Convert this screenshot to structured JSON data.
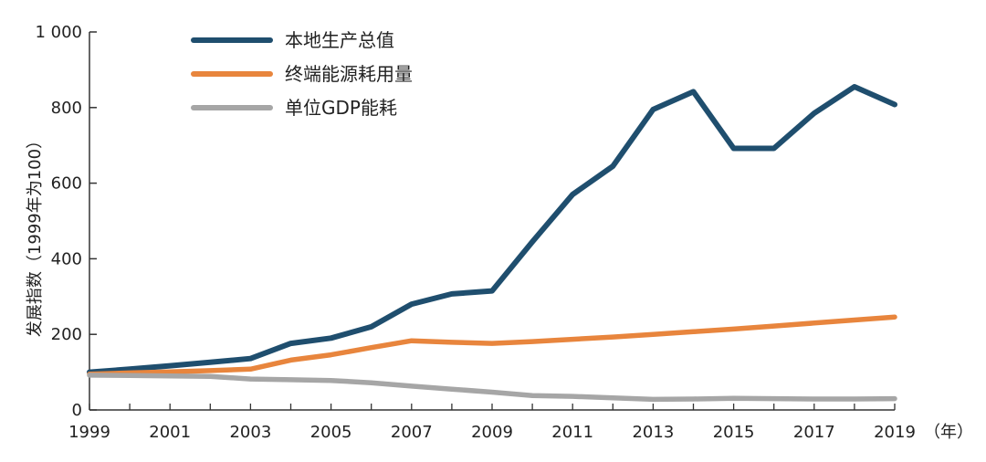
{
  "chart_data": {
    "type": "line",
    "title": "",
    "xlabel": "（年）",
    "ylabel": "发展指数（1999年为100）",
    "x": [
      1999,
      2000,
      2001,
      2002,
      2003,
      2004,
      2005,
      2006,
      2007,
      2008,
      2009,
      2010,
      2011,
      2012,
      2013,
      2014,
      2015,
      2016,
      2017,
      2018,
      2019
    ],
    "x_tick_labels": [
      "1999",
      "2001",
      "2003",
      "2005",
      "2007",
      "2009",
      "2011",
      "2013",
      "2015",
      "2017",
      "2019"
    ],
    "y_tick_labels": [
      "0",
      "200",
      "400",
      "600",
      "800",
      "1 000"
    ],
    "ylim": [
      0,
      1000
    ],
    "xlim": [
      1999,
      2019
    ],
    "grid": false,
    "legend_position": "top-left",
    "series": [
      {
        "name": "本地生产总值",
        "color": "#1f4e6e",
        "values": [
          100,
          108,
          117,
          126,
          136,
          176,
          190,
          220,
          280,
          307,
          315,
          445,
          570,
          645,
          795,
          842,
          692,
          692,
          785,
          855,
          808
        ]
      },
      {
        "name": "终端能源耗用量",
        "color": "#e8853d",
        "values": [
          95,
          98,
          101,
          104,
          108,
          132,
          146,
          165,
          183,
          179,
          176,
          181,
          187,
          193,
          200,
          207,
          214,
          222,
          230,
          238,
          246
        ]
      },
      {
        "name": "单位GDP能耗",
        "color": "#a6a6a6",
        "values": [
          92,
          91,
          90,
          89,
          82,
          80,
          78,
          72,
          63,
          55,
          47,
          38,
          36,
          32,
          28,
          29,
          31,
          30,
          29,
          29,
          30
        ]
      }
    ]
  }
}
